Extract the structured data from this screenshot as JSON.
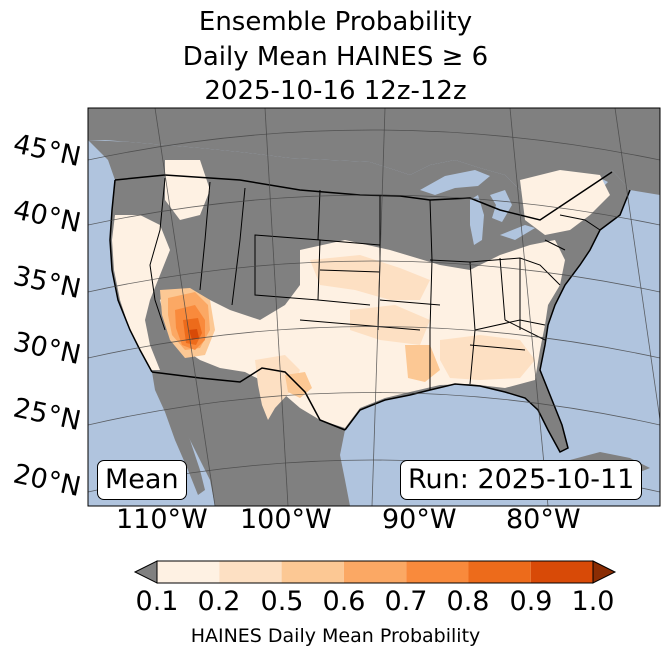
{
  "title": {
    "line1": "Ensemble Probability",
    "line2": "Daily Mean HAINES ≥ 6",
    "line3": "2025-10-16 12z-12z"
  },
  "lat_labels": [
    "45°N",
    "40°N",
    "35°N",
    "30°N",
    "25°N",
    "20°N"
  ],
  "lon_labels": [
    "110°W",
    "100°W",
    "90°W",
    "80°W"
  ],
  "boxes": {
    "left": "Mean",
    "right": "Run: 2025-10-11"
  },
  "colorbar": {
    "ticks": [
      "0.1",
      "0.2",
      "0.5",
      "0.6",
      "0.7",
      "0.8",
      "0.9",
      "1.0"
    ],
    "label": "HAINES Daily Mean Probability",
    "colors": [
      "#fef1e3",
      "#fde0c3",
      "#fcc894",
      "#fba864",
      "#f98a3c",
      "#ed6b1b",
      "#d84a07"
    ],
    "under_color": "#808080",
    "over_color": "#8a2d04"
  },
  "colors": {
    "ocean": "#b0c4de",
    "land": "#808080"
  }
}
